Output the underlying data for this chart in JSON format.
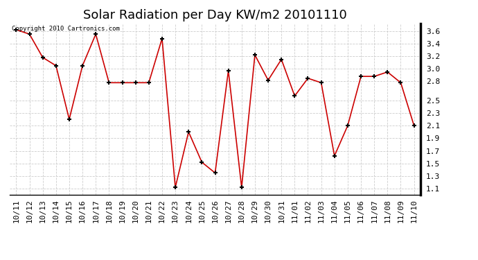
{
  "title": "Solar Radiation per Day KW/m2 20101110",
  "copyright_text": "Copyright 2010 Cartronics.com",
  "labels": [
    "10/11",
    "10/12",
    "10/13",
    "10/14",
    "10/15",
    "10/16",
    "10/17",
    "10/18",
    "10/19",
    "10/20",
    "10/21",
    "10/22",
    "10/23",
    "10/24",
    "10/25",
    "10/26",
    "10/27",
    "10/28",
    "10/29",
    "10/30",
    "10/31",
    "11/01",
    "11/02",
    "11/03",
    "11/04",
    "11/05",
    "11/06",
    "11/07",
    "11/08",
    "11/09",
    "11/10"
  ],
  "values": [
    3.62,
    3.55,
    3.18,
    3.05,
    2.2,
    3.05,
    3.55,
    2.78,
    2.78,
    2.78,
    2.78,
    3.48,
    1.12,
    2.0,
    1.52,
    1.35,
    2.97,
    1.12,
    3.22,
    2.82,
    3.15,
    2.57,
    2.85,
    2.78,
    1.62,
    2.1,
    2.88,
    2.88,
    2.95,
    2.78,
    2.1
  ],
  "line_color": "#cc0000",
  "marker_color": "#000000",
  "bg_color": "#ffffff",
  "grid_color": "#cccccc",
  "ylim": [
    1.0,
    3.72
  ],
  "yticks": [
    1.1,
    1.3,
    1.5,
    1.7,
    1.9,
    2.1,
    2.3,
    2.5,
    2.8,
    3.0,
    3.2,
    3.4,
    3.6
  ],
  "title_fontsize": 13,
  "tick_fontsize": 8,
  "copyright_fontsize": 6.5
}
